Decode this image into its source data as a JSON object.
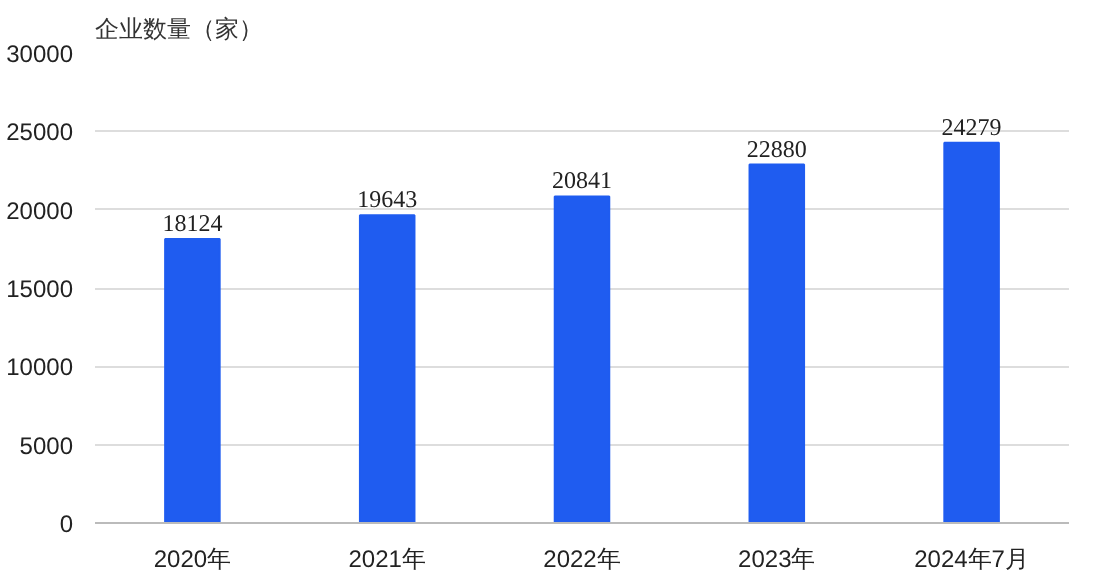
{
  "chart_data": {
    "type": "bar",
    "ylabel": "企业数量（家）",
    "categories": [
      "2020年",
      "2021年",
      "2022年",
      "2023年",
      "2024年7月"
    ],
    "values": [
      18124,
      19643,
      20841,
      22880,
      24279
    ],
    "color": "#1f5cf0",
    "ylim": [
      0,
      30000
    ],
    "yticks": [
      0,
      5000,
      10000,
      15000,
      20000,
      25000,
      30000
    ],
    "grid": "y",
    "data_labels": true
  }
}
